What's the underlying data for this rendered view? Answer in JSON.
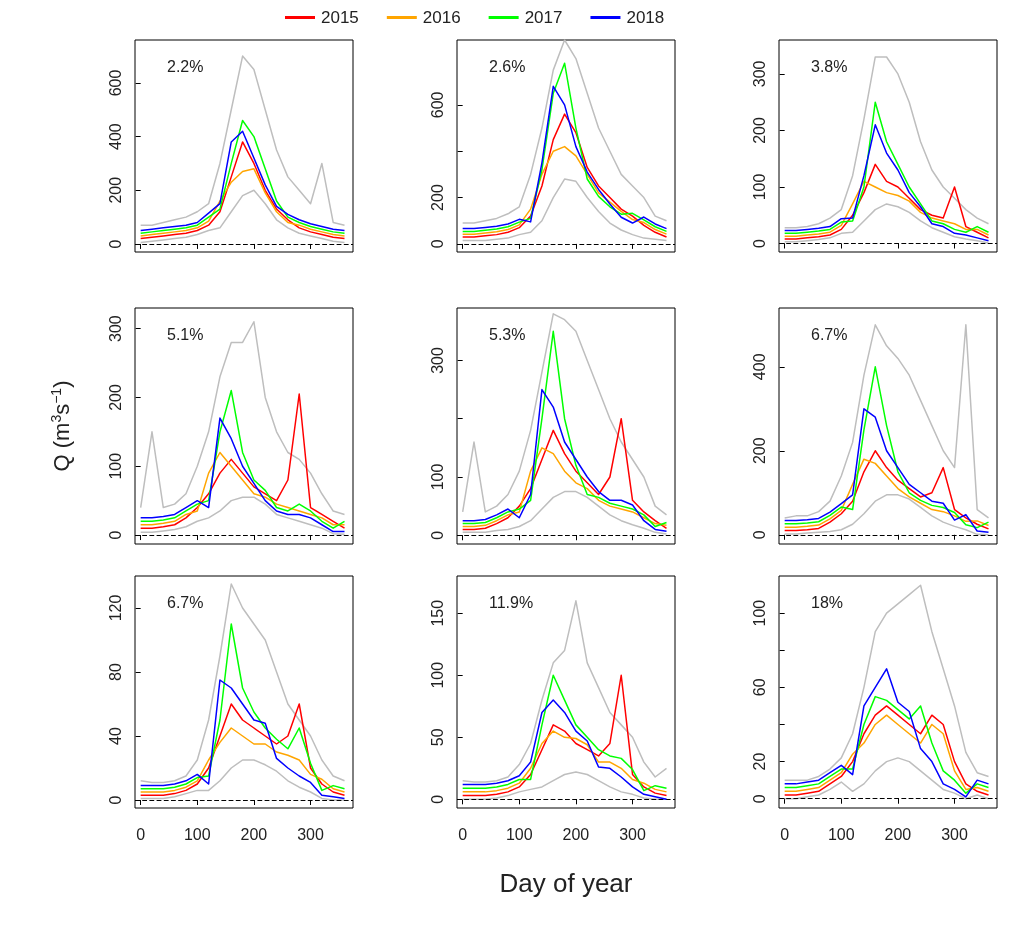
{
  "chart_data": [
    {
      "type": "line",
      "annotations": [
        "2.2%"
      ],
      "legend": "top",
      "grid": false,
      "tick_labels": "y",
      "x": [
        0,
        20,
        40,
        60,
        80,
        100,
        120,
        140,
        160,
        180,
        200,
        220,
        240,
        260,
        280,
        300,
        320,
        340,
        360
      ],
      "xlim": [
        -10,
        375
      ],
      "xticks": [
        0,
        100,
        200,
        300
      ],
      "ylim": [
        -30,
        760
      ],
      "yticks": [
        0,
        200,
        400,
        600
      ],
      "ref_lines": [
        {
          "axis": "y",
          "value": 0,
          "line_style": "dashed",
          "color": "#000000"
        }
      ],
      "series": [
        {
          "color": "#bebebe",
          "values": [
            70,
            70,
            80,
            90,
            100,
            120,
            150,
            300,
            500,
            700,
            650,
            500,
            350,
            250,
            200,
            150,
            300,
            80,
            70
          ]
        },
        {
          "color": "#bebebe",
          "values": [
            5,
            10,
            15,
            20,
            25,
            35,
            50,
            60,
            120,
            180,
            200,
            150,
            90,
            60,
            40,
            30,
            20,
            10,
            5
          ]
        },
        {
          "name": "2015",
          "color": "#ff0000",
          "values": [
            20,
            25,
            30,
            35,
            40,
            50,
            70,
            120,
            250,
            380,
            300,
            200,
            130,
            90,
            60,
            45,
            35,
            25,
            20
          ]
        },
        {
          "name": "2016",
          "color": "#ffa500",
          "values": [
            30,
            35,
            40,
            45,
            50,
            60,
            85,
            160,
            230,
            270,
            280,
            190,
            120,
            80,
            70,
            55,
            45,
            35,
            30
          ]
        },
        {
          "name": "2017",
          "color": "#00ff00",
          "values": [
            40,
            45,
            50,
            55,
            60,
            70,
            100,
            130,
            300,
            460,
            400,
            280,
            160,
            100,
            80,
            65,
            55,
            45,
            40
          ]
        },
        {
          "name": "2018",
          "color": "#0000ff",
          "values": [
            50,
            55,
            60,
            65,
            70,
            80,
            115,
            150,
            380,
            420,
            320,
            220,
            140,
            110,
            90,
            75,
            65,
            55,
            50
          ]
        }
      ]
    },
    {
      "type": "line",
      "annotations": [
        "2.6%"
      ],
      "grid": false,
      "tick_labels": "y",
      "x": [
        0,
        20,
        40,
        60,
        80,
        100,
        120,
        140,
        160,
        180,
        200,
        220,
        240,
        260,
        280,
        300,
        320,
        340,
        360
      ],
      "xlim": [
        -10,
        375
      ],
      "xticks": [
        0,
        100,
        200,
        300
      ],
      "ylim": [
        -35,
        880
      ],
      "yticks": [
        0,
        200,
        {
          "value": 400,
          "label": null
        },
        600
      ],
      "ref_lines": [
        {
          "axis": "y",
          "value": 0,
          "line_style": "dashed",
          "color": "#000000"
        }
      ],
      "series": [
        {
          "color": "#bebebe",
          "values": [
            90,
            90,
            100,
            110,
            130,
            160,
            300,
            500,
            750,
            880,
            800,
            650,
            500,
            400,
            300,
            250,
            200,
            120,
            100
          ]
        },
        {
          "color": "#bebebe",
          "values": [
            15,
            15,
            15,
            20,
            25,
            40,
            50,
            100,
            200,
            280,
            270,
            200,
            140,
            90,
            60,
            40,
            25,
            20,
            15
          ]
        },
        {
          "color": "#ff0000",
          "values": [
            30,
            30,
            35,
            40,
            50,
            70,
            120,
            250,
            450,
            560,
            480,
            330,
            250,
            200,
            150,
            120,
            80,
            50,
            30
          ]
        },
        {
          "color": "#ffa500",
          "values": [
            42,
            42,
            47,
            52,
            62,
            82,
            150,
            300,
            400,
            420,
            380,
            300,
            220,
            180,
            140,
            105,
            92,
            62,
            42
          ]
        },
        {
          "color": "#00ff00",
          "values": [
            54,
            54,
            59,
            64,
            74,
            94,
            110,
            320,
            650,
            780,
            500,
            280,
            205,
            160,
            128,
            132,
            104,
            74,
            54
          ]
        },
        {
          "color": "#0000ff",
          "values": [
            66,
            66,
            71,
            76,
            86,
            106,
            95,
            350,
            680,
            600,
            420,
            310,
            235,
            172,
            115,
            90,
            116,
            86,
            66
          ]
        }
      ]
    },
    {
      "type": "line",
      "annotations": [
        "3.8%"
      ],
      "grid": false,
      "tick_labels": "y",
      "x": [
        0,
        20,
        40,
        60,
        80,
        100,
        120,
        140,
        160,
        180,
        200,
        220,
        240,
        260,
        280,
        300,
        320,
        340,
        360
      ],
      "xlim": [
        -10,
        375
      ],
      "xticks": [
        0,
        100,
        200,
        300
      ],
      "ylim": [
        -15,
        360
      ],
      "yticks": [
        0,
        100,
        200,
        300
      ],
      "ref_lines": [
        {
          "axis": "y",
          "value": 0,
          "line_style": "dashed",
          "color": "#000000"
        }
      ],
      "series": [
        {
          "color": "#bebebe",
          "values": [
            28,
            28,
            30,
            35,
            45,
            60,
            120,
            220,
            330,
            330,
            300,
            250,
            180,
            130,
            100,
            80,
            60,
            45,
            35
          ]
        },
        {
          "color": "#bebebe",
          "values": [
            3,
            3,
            5,
            7,
            10,
            18,
            20,
            40,
            60,
            70,
            65,
            55,
            40,
            28,
            20,
            12,
            8,
            5,
            1
          ]
        },
        {
          "color": "#ff0000",
          "values": [
            8,
            8,
            10,
            12,
            15,
            25,
            50,
            90,
            140,
            110,
            100,
            80,
            60,
            50,
            45,
            100,
            30,
            20,
            10
          ]
        },
        {
          "color": "#ffa500",
          "values": [
            13,
            13,
            15,
            17,
            20,
            32,
            70,
            110,
            100,
            90,
            85,
            75,
            55,
            45,
            40,
            35,
            25,
            25,
            15
          ]
        },
        {
          "color": "#00ff00",
          "values": [
            18,
            18,
            20,
            22,
            25,
            38,
            40,
            100,
            250,
            180,
            140,
            100,
            70,
            40,
            35,
            25,
            20,
            30,
            20
          ]
        },
        {
          "color": "#0000ff",
          "values": [
            23,
            23,
            25,
            27,
            30,
            44,
            45,
            120,
            210,
            160,
            130,
            90,
            65,
            35,
            30,
            18,
            15,
            10,
            5
          ]
        }
      ]
    },
    {
      "type": "line",
      "annotations": [
        "5.1%"
      ],
      "ylabel": "Q (m$^{3}$s$^{−1}$)",
      "grid": false,
      "tick_labels": "y",
      "x": [
        0,
        20,
        40,
        60,
        80,
        100,
        120,
        140,
        160,
        180,
        200,
        220,
        240,
        260,
        280,
        300,
        320,
        340,
        360
      ],
      "xlim": [
        -10,
        375
      ],
      "xticks": [
        0,
        100,
        200,
        300
      ],
      "ylim": [
        -13,
        330
      ],
      "yticks": [
        0,
        100,
        200,
        300
      ],
      "ref_lines": [
        {
          "axis": "y",
          "value": 0,
          "line_style": "dashed",
          "color": "#000000"
        }
      ],
      "series": [
        {
          "color": "#bebebe",
          "values": [
            40,
            150,
            40,
            45,
            60,
            100,
            150,
            230,
            280,
            280,
            310,
            200,
            150,
            120,
            110,
            90,
            60,
            35,
            30
          ]
        },
        {
          "color": "#bebebe",
          "values": [
            4,
            4,
            6,
            8,
            12,
            20,
            25,
            35,
            50,
            55,
            55,
            45,
            30,
            25,
            20,
            15,
            10,
            2,
            1
          ]
        },
        {
          "color": "#ff0000",
          "values": [
            10,
            10,
            12,
            15,
            25,
            40,
            60,
            90,
            110,
            90,
            70,
            60,
            50,
            80,
            205,
            40,
            30,
            20,
            10
          ]
        },
        {
          "color": "#ffa500",
          "values": [
            15,
            15,
            17,
            20,
            30,
            35,
            90,
            120,
            100,
            80,
            60,
            55,
            45,
            40,
            35,
            30,
            25,
            15,
            15
          ]
        },
        {
          "color": "#00ff00",
          "values": [
            20,
            20,
            22,
            25,
            35,
            45,
            50,
            150,
            210,
            120,
            80,
            65,
            40,
            35,
            45,
            35,
            20,
            10,
            20
          ]
        },
        {
          "color": "#0000ff",
          "values": [
            25,
            25,
            27,
            30,
            40,
            50,
            40,
            170,
            140,
            100,
            75,
            50,
            35,
            30,
            30,
            25,
            15,
            5,
            5
          ]
        }
      ]
    },
    {
      "type": "line",
      "annotations": [
        "5.3%"
      ],
      "grid": false,
      "tick_labels": "y",
      "x": [
        0,
        20,
        40,
        60,
        80,
        100,
        120,
        140,
        160,
        180,
        200,
        220,
        240,
        260,
        280,
        300,
        320,
        340,
        360
      ],
      "xlim": [
        -10,
        375
      ],
      "xticks": [
        0,
        100,
        200,
        300
      ],
      "ylim": [
        -15,
        390
      ],
      "yticks": [
        0,
        100,
        {
          "value": 200,
          "label": null
        },
        300
      ],
      "ref_lines": [
        {
          "axis": "y",
          "value": 0,
          "line_style": "dashed",
          "color": "#000000"
        }
      ],
      "series": [
        {
          "color": "#bebebe",
          "values": [
            40,
            160,
            40,
            50,
            70,
            110,
            180,
            280,
            380,
            370,
            350,
            300,
            250,
            200,
            160,
            130,
            100,
            50,
            35
          ]
        },
        {
          "color": "#bebebe",
          "values": [
            5,
            5,
            5,
            8,
            10,
            15,
            25,
            45,
            65,
            75,
            75,
            65,
            50,
            35,
            25,
            18,
            12,
            5,
            2
          ]
        },
        {
          "color": "#ff0000",
          "values": [
            10,
            10,
            12,
            20,
            30,
            50,
            80,
            130,
            180,
            140,
            110,
            90,
            70,
            100,
            200,
            60,
            40,
            25,
            12
          ]
        },
        {
          "color": "#ffa500",
          "values": [
            15,
            15,
            17,
            25,
            35,
            40,
            110,
            150,
            140,
            110,
            90,
            80,
            60,
            50,
            45,
            40,
            30,
            20,
            17
          ]
        },
        {
          "color": "#00ff00",
          "values": [
            20,
            20,
            22,
            30,
            40,
            45,
            60,
            200,
            350,
            200,
            120,
            70,
            65,
            55,
            50,
            45,
            35,
            15,
            22
          ]
        },
        {
          "color": "#0000ff",
          "values": [
            25,
            25,
            27,
            35,
            45,
            30,
            70,
            250,
            220,
            160,
            130,
            100,
            75,
            60,
            60,
            52,
            25,
            10,
            7
          ]
        }
      ]
    },
    {
      "type": "line",
      "annotations": [
        "6.7%"
      ],
      "grid": false,
      "tick_labels": "y",
      "x": [
        0,
        20,
        40,
        60,
        80,
        100,
        120,
        140,
        160,
        180,
        200,
        220,
        240,
        260,
        280,
        300,
        320,
        340,
        360
      ],
      "xlim": [
        -10,
        375
      ],
      "xticks": [
        0,
        100,
        200,
        300
      ],
      "ylim": [
        -22,
        540
      ],
      "yticks": [
        0,
        200,
        400
      ],
      "ref_lines": [
        {
          "axis": "y",
          "value": 0,
          "line_style": "dashed",
          "color": "#000000"
        }
      ],
      "series": [
        {
          "color": "#bebebe",
          "values": [
            40,
            45,
            45,
            55,
            80,
            140,
            220,
            380,
            500,
            450,
            420,
            380,
            320,
            260,
            200,
            160,
            500,
            60,
            40
          ]
        },
        {
          "color": "#bebebe",
          "values": [
            2,
            2,
            4,
            6,
            8,
            12,
            25,
            50,
            80,
            95,
            95,
            85,
            65,
            45,
            30,
            20,
            12,
            1,
            0
          ]
        },
        {
          "color": "#ff0000",
          "values": [
            10,
            10,
            12,
            15,
            30,
            50,
            80,
            150,
            200,
            160,
            130,
            110,
            90,
            100,
            160,
            60,
            40,
            25,
            14
          ]
        },
        {
          "color": "#ffa500",
          "values": [
            18,
            18,
            20,
            23,
            38,
            58,
            120,
            180,
            170,
            140,
            110,
            90,
            75,
            60,
            55,
            45,
            32,
            33,
            22
          ]
        },
        {
          "color": "#00ff00",
          "values": [
            26,
            26,
            28,
            31,
            46,
            66,
            60,
            250,
            400,
            260,
            150,
            100,
            82,
            70,
            65,
            53,
            24,
            17,
            30
          ]
        },
        {
          "color": "#0000ff",
          "values": [
            34,
            34,
            36,
            39,
            54,
            74,
            95,
            300,
            280,
            200,
            160,
            120,
            100,
            80,
            75,
            35,
            48,
            9,
            6
          ]
        }
      ]
    },
    {
      "type": "line",
      "annotations": [
        "6.7%"
      ],
      "grid": false,
      "x": [
        0,
        20,
        40,
        60,
        80,
        100,
        120,
        140,
        160,
        180,
        200,
        220,
        240,
        260,
        280,
        300,
        320,
        340,
        360
      ],
      "xlim": [
        -10,
        375
      ],
      "xticks": [
        0,
        100,
        200,
        300
      ],
      "ylim": [
        -5,
        140
      ],
      "yticks": [
        0,
        40,
        80,
        120
      ],
      "ref_lines": [
        {
          "axis": "y",
          "value": 0,
          "line_style": "dashed",
          "color": "#000000"
        }
      ],
      "series": [
        {
          "color": "#bebebe",
          "values": [
            12,
            11,
            11,
            12,
            15,
            25,
            50,
            90,
            135,
            120,
            110,
            100,
            80,
            60,
            50,
            40,
            25,
            15,
            12
          ]
        },
        {
          "color": "#bebebe",
          "values": [
            1,
            1,
            1,
            2,
            4,
            6,
            6,
            12,
            20,
            25,
            25,
            22,
            18,
            12,
            8,
            5,
            1,
            0,
            0
          ]
        },
        {
          "color": "#ff0000",
          "values": [
            3,
            3,
            3,
            4,
            6,
            10,
            20,
            40,
            60,
            50,
            45,
            40,
            35,
            40,
            60,
            20,
            10,
            5,
            3
          ]
        },
        {
          "color": "#ffa500",
          "values": [
            5,
            5,
            5,
            6,
            8,
            12,
            25,
            36,
            45,
            40,
            35,
            35,
            30,
            28,
            25,
            16,
            13,
            7,
            5
          ]
        },
        {
          "color": "#00ff00",
          "values": [
            7,
            7,
            7,
            8,
            10,
            14,
            15,
            50,
            110,
            70,
            55,
            45,
            38,
            32,
            45,
            23,
            6,
            9,
            7
          ]
        },
        {
          "color": "#0000ff",
          "values": [
            9,
            9,
            9,
            10,
            12,
            16,
            10,
            75,
            70,
            60,
            50,
            48,
            26,
            20,
            15,
            11,
            3,
            2,
            1
          ]
        }
      ]
    },
    {
      "type": "line",
      "annotations": [
        "11.9%"
      ],
      "xlabel": "Day of year",
      "grid": false,
      "x": [
        0,
        20,
        40,
        60,
        80,
        100,
        120,
        140,
        160,
        180,
        200,
        220,
        240,
        260,
        280,
        300,
        320,
        340,
        360
      ],
      "xlim": [
        -10,
        375
      ],
      "xticks": [
        0,
        100,
        200,
        300
      ],
      "ylim": [
        -7,
        180
      ],
      "yticks": [
        0,
        50,
        100,
        150
      ],
      "ref_lines": [
        {
          "axis": "y",
          "value": 0,
          "line_style": "dashed",
          "color": "#000000"
        }
      ],
      "series": [
        {
          "color": "#bebebe",
          "values": [
            15,
            14,
            14,
            15,
            18,
            28,
            45,
            80,
            110,
            120,
            160,
            110,
            90,
            70,
            60,
            50,
            30,
            18,
            25
          ]
        },
        {
          "color": "#bebebe",
          "values": [
            0,
            0,
            0,
            1,
            3,
            6,
            8,
            10,
            15,
            20,
            22,
            20,
            15,
            10,
            6,
            4,
            1,
            0,
            0
          ]
        },
        {
          "color": "#ff0000",
          "values": [
            3,
            3,
            3,
            4,
            6,
            10,
            20,
            40,
            60,
            55,
            45,
            40,
            35,
            45,
            100,
            20,
            10,
            5,
            3
          ]
        },
        {
          "color": "#ffa500",
          "values": [
            6,
            6,
            6,
            7,
            9,
            13,
            25,
            45,
            55,
            50,
            49,
            44,
            30,
            30,
            25,
            16,
            13,
            8,
            6
          ]
        },
        {
          "color": "#00ff00",
          "values": [
            9,
            9,
            9,
            10,
            12,
            16,
            16,
            60,
            100,
            80,
            60,
            50,
            40,
            35,
            33,
            24,
            7,
            11,
            9
          ]
        },
        {
          "color": "#0000ff",
          "values": [
            12,
            12,
            12,
            13,
            15,
            19,
            30,
            70,
            80,
            70,
            55,
            47,
            26,
            25,
            18,
            10,
            4,
            2,
            0
          ]
        }
      ]
    },
    {
      "type": "line",
      "annotations": [
        "18%"
      ],
      "grid": false,
      "x": [
        0,
        20,
        40,
        60,
        80,
        100,
        120,
        140,
        160,
        180,
        200,
        220,
        240,
        260,
        280,
        300,
        320,
        340,
        360
      ],
      "xlim": [
        -10,
        375
      ],
      "xticks": [
        0,
        100,
        200,
        300
      ],
      "ylim": [
        -5,
        120
      ],
      "yticks": [
        0,
        20,
        {
          "value": 40,
          "label": null
        },
        60,
        {
          "value": 80,
          "label": null
        },
        100
      ],
      "ref_lines": [
        {
          "axis": "y",
          "value": 0,
          "line_style": "dashed",
          "color": "#000000"
        }
      ],
      "series": [
        {
          "color": "#bebebe",
          "values": [
            10,
            10,
            10,
            12,
            16,
            22,
            35,
            60,
            90,
            100,
            105,
            110,
            115,
            90,
            70,
            50,
            25,
            14,
            12
          ]
        },
        {
          "color": "#bebebe",
          "values": [
            0,
            0,
            1,
            2,
            5,
            9,
            4,
            8,
            15,
            20,
            22,
            20,
            15,
            10,
            5,
            3,
            0,
            2,
            0
          ]
        },
        {
          "color": "#ff0000",
          "values": [
            2,
            2,
            3,
            4,
            8,
            12,
            20,
            35,
            45,
            50,
            45,
            40,
            35,
            45,
            40,
            20,
            8,
            4,
            2
          ]
        },
        {
          "color": "#ffa500",
          "values": [
            4,
            4,
            5,
            6,
            10,
            14,
            24,
            30,
            40,
            45,
            40,
            35,
            30,
            40,
            35,
            15,
            5,
            6,
            4
          ]
        },
        {
          "color": "#00ff00",
          "values": [
            6,
            6,
            7,
            8,
            12,
            16,
            16,
            40,
            55,
            53,
            48,
            43,
            50,
            30,
            15,
            10,
            3,
            8,
            6
          ]
        },
        {
          "color": "#0000ff",
          "values": [
            8,
            8,
            9,
            10,
            14,
            18,
            13,
            50,
            60,
            70,
            52,
            47,
            27,
            20,
            8,
            5,
            1,
            10,
            8
          ]
        }
      ]
    }
  ]
}
